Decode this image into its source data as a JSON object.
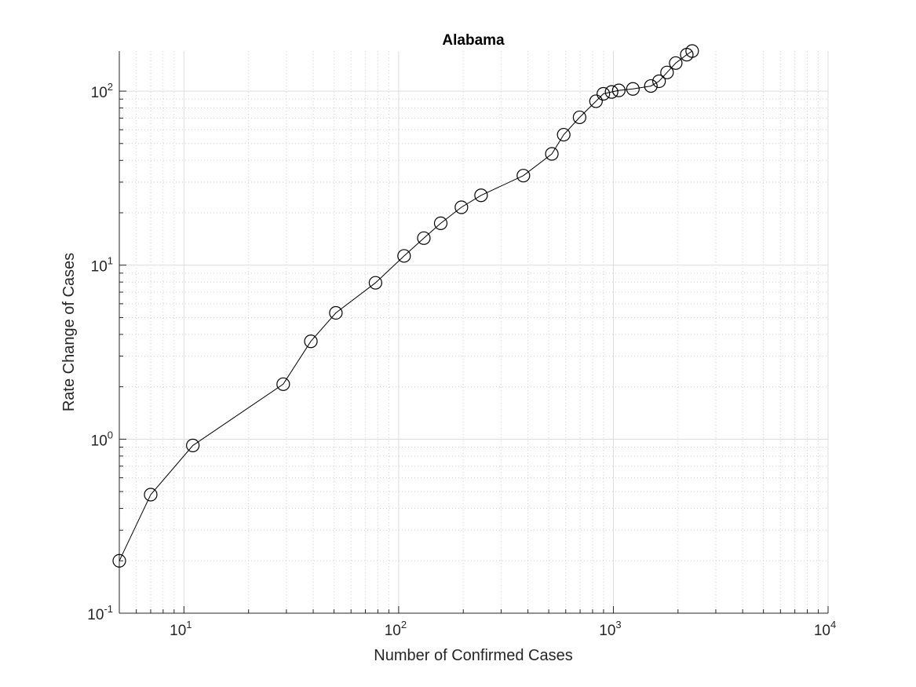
{
  "chart_data": {
    "type": "line",
    "title": "Alabama",
    "xlabel": "Number of Confirmed Cases",
    "ylabel": "Rate Change of Cases",
    "xscale": "log",
    "yscale": "log",
    "xlim": [
      5,
      10000
    ],
    "ylim": [
      0.1,
      170
    ],
    "grid": true,
    "minor_grid": true,
    "marker": "circle",
    "line_color": "#000000",
    "x_ticks": [
      {
        "base": "10",
        "exp": "1",
        "value": 10
      },
      {
        "base": "10",
        "exp": "2",
        "value": 100
      },
      {
        "base": "10",
        "exp": "3",
        "value": 1000
      },
      {
        "base": "10",
        "exp": "4",
        "value": 10000
      }
    ],
    "y_ticks": [
      {
        "base": "10",
        "exp": "-1",
        "value": 0.1
      },
      {
        "base": "10",
        "exp": "0",
        "value": 1
      },
      {
        "base": "10",
        "exp": "1",
        "value": 10
      },
      {
        "base": "10",
        "exp": "2",
        "value": 100
      }
    ],
    "series": [
      {
        "x": [
          5,
          7,
          11,
          29,
          39,
          51,
          78,
          106,
          131,
          157,
          196,
          242,
          381,
          517,
          587,
          696,
          830,
          898,
          981,
          1060,
          1233,
          1495,
          1632,
          1778,
          1952,
          2197,
          2328
        ],
        "y": [
          0.2,
          0.48,
          0.92,
          2.07,
          3.65,
          5.32,
          7.92,
          11.3,
          14.3,
          17.4,
          21.5,
          25.2,
          32.7,
          43.6,
          56.2,
          70.7,
          87.5,
          96.5,
          98.9,
          101,
          103,
          107,
          114,
          128,
          145,
          162,
          170
        ]
      }
    ]
  }
}
